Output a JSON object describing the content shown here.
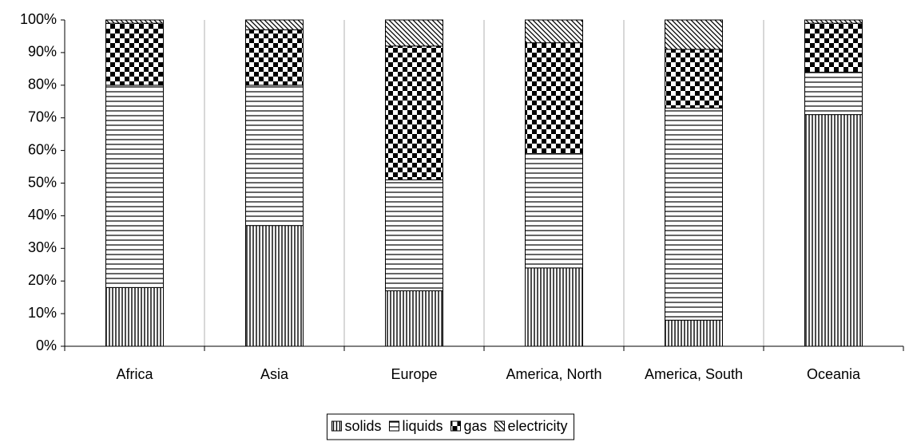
{
  "chart_data": {
    "type": "stacked_bar",
    "categories": [
      "Africa",
      "Asia",
      "Europe",
      "America, North",
      "America, South",
      "Oceania"
    ],
    "series": [
      {
        "name": "solids",
        "color": "#000000",
        "values": [
          18,
          37,
          17,
          24,
          8,
          71
        ]
      },
      {
        "name": "liquids",
        "color": "#000000",
        "values": [
          62,
          43,
          34,
          35,
          65,
          13
        ]
      },
      {
        "name": "gas",
        "color": "#000000",
        "values": [
          19,
          17,
          41,
          34,
          18,
          15
        ]
      },
      {
        "name": "electricity",
        "color": "#000000",
        "values": [
          1,
          3,
          8,
          7,
          9,
          1
        ]
      }
    ],
    "ylim": [
      0,
      100
    ],
    "yticks": [
      {
        "value": 0,
        "label": "0%"
      },
      {
        "value": 10,
        "label": "10%"
      },
      {
        "value": 20,
        "label": "20%"
      },
      {
        "value": 30,
        "label": "30%"
      },
      {
        "value": 40,
        "label": "40%"
      },
      {
        "value": 50,
        "label": "50%"
      },
      {
        "value": 60,
        "label": "60%"
      },
      {
        "value": 70,
        "label": "70%"
      },
      {
        "value": 80,
        "label": "80%"
      },
      {
        "value": 90,
        "label": "90%"
      },
      {
        "value": 100,
        "label": "100%"
      }
    ],
    "grid": true,
    "legend": "bottom"
  }
}
